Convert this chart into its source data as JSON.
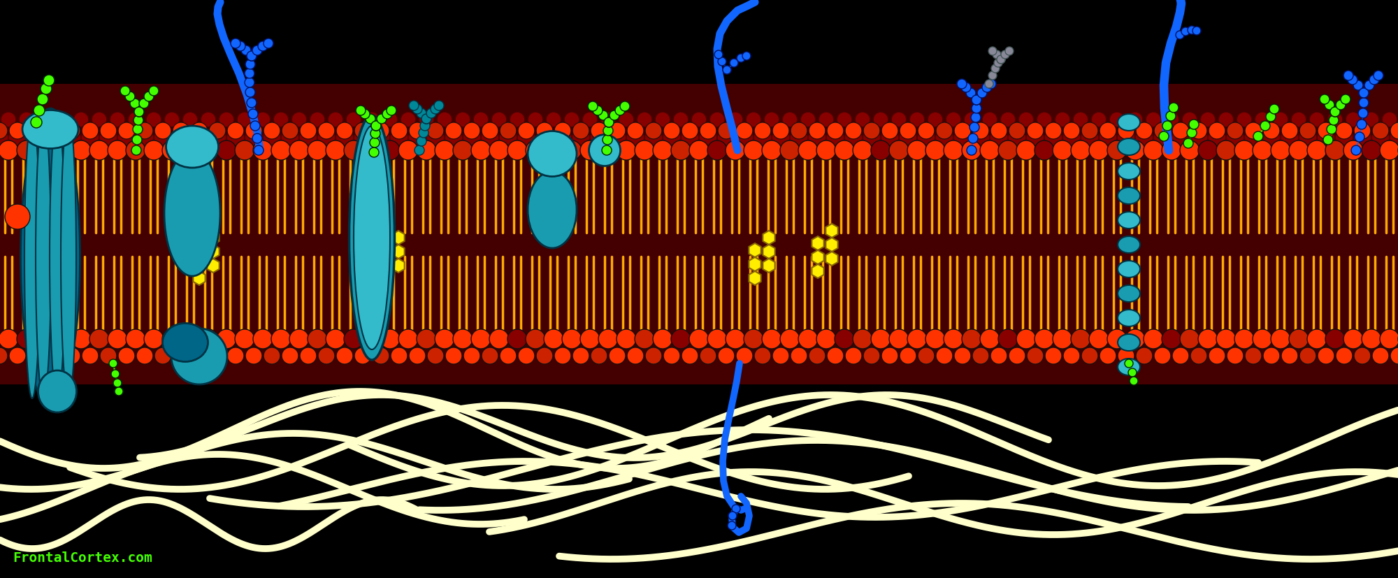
{
  "bg_color": "#000000",
  "colors": {
    "head_bright": "#ff3300",
    "head_mid": "#cc2200",
    "head_dark": "#880000",
    "tail": "#ffaa00",
    "tail_dark": "#cc8800",
    "membrane_interior": "#440000",
    "cholesterol": "#ffee00",
    "protein_main": "#1a9cb0",
    "protein_light": "#33bbcc",
    "protein_dark": "#006688",
    "green": "#44ff00",
    "blue_bright": "#1166ff",
    "blue_mid": "#0055dd",
    "teal": "#008899",
    "filament": "#ffffcc",
    "credit": "#44ff00"
  },
  "credit_text": "FrontalCortex.com"
}
